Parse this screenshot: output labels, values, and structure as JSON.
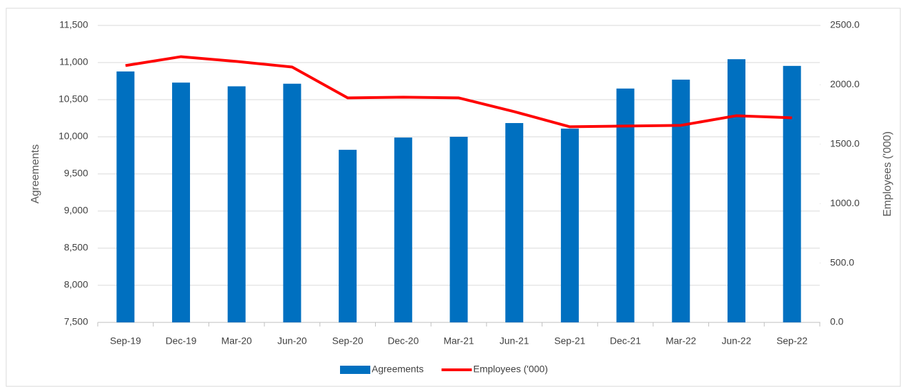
{
  "chart_data": {
    "type": "bar-line",
    "categories": [
      "Sep-19",
      "Dec-19",
      "Mar-20",
      "Jun-20",
      "Sep-20",
      "Dec-20",
      "Mar-21",
      "Jun-21",
      "Sep-21",
      "Dec-21",
      "Mar-22",
      "Jun-22",
      "Sep-22"
    ],
    "series": [
      {
        "name": "Agreements",
        "type": "bar",
        "color": "#0070c0",
        "values": [
          10880,
          10730,
          10680,
          10715,
          9825,
          9990,
          10000,
          10185,
          10110,
          10650,
          10770,
          11045,
          10955
        ]
      },
      {
        "name": "Employees ('000)",
        "type": "line",
        "axis": "y2",
        "color": "#ff0000",
        "values": [
          2162,
          2237,
          2197,
          2150,
          1890,
          1896,
          1890,
          1774,
          1647,
          1653,
          1659,
          1740,
          1722
        ]
      }
    ],
    "y_label": "Agreements",
    "y2_label": "Employees ('000)",
    "ylim": [
      7500,
      11500
    ],
    "yticks": [
      {
        "value": 7500,
        "label": "7,500"
      },
      {
        "value": 8000,
        "label": "8,000"
      },
      {
        "value": 8500,
        "label": "8,500"
      },
      {
        "value": 9000,
        "label": "9,000"
      },
      {
        "value": 9500,
        "label": "9,500"
      },
      {
        "value": 10000,
        "label": "10,000"
      },
      {
        "value": 10500,
        "label": "10,500"
      },
      {
        "value": 11000,
        "label": "11,000"
      },
      {
        "value": 11500,
        "label": "11,500"
      }
    ],
    "y2lim": [
      0,
      2500
    ],
    "y2ticks": [
      {
        "value": 0,
        "label": "0.0"
      },
      {
        "value": 500,
        "label": "500.0"
      },
      {
        "value": 1000,
        "label": "1000.0"
      },
      {
        "value": 1500,
        "label": "1500.0"
      },
      {
        "value": 2000,
        "label": "2000.0"
      },
      {
        "value": 2500,
        "label": "2500.0"
      }
    ],
    "grid": true,
    "legend": "bottom"
  }
}
